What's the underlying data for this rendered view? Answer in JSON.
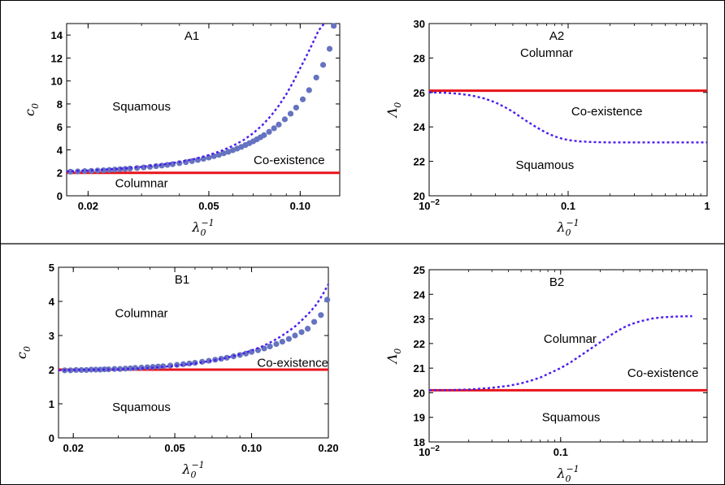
{
  "chart_data": [
    {
      "id": "A1",
      "type": "scatter",
      "panel_label": "A1",
      "xlabel_base": "λ",
      "xlabel_sub": "0",
      "xlabel_sup": "−1",
      "ylabel_base": "c",
      "ylabel_sub": "0",
      "xscale": "log",
      "xlim": [
        0.017,
        0.135
      ],
      "ylim": [
        0,
        15
      ],
      "xticks": [
        {
          "v": 0.02,
          "label": "0.02"
        },
        {
          "v": 0.05,
          "label": "0.05"
        },
        {
          "v": 0.1,
          "label": "0.10"
        }
      ],
      "yticks": [
        {
          "v": 0,
          "label": "0"
        },
        {
          "v": 2,
          "label": "2"
        },
        {
          "v": 4,
          "label": "4"
        },
        {
          "v": 6,
          "label": "6"
        },
        {
          "v": 8,
          "label": "8"
        },
        {
          "v": 10,
          "label": "10"
        },
        {
          "v": 12,
          "label": "12"
        },
        {
          "v": 14,
          "label": "14"
        }
      ],
      "regions": [
        {
          "text": "Squamous",
          "x": 0.03,
          "y": 7.8
        },
        {
          "text": "Co-existence",
          "x": 0.092,
          "y": 3.1
        },
        {
          "text": "Columnar",
          "x": 0.03,
          "y": 1.1
        }
      ],
      "red_line": {
        "y": 2.0
      },
      "dotted_curve": {
        "x": [
          0.017,
          0.02,
          0.025,
          0.03,
          0.035,
          0.04,
          0.045,
          0.05,
          0.055,
          0.06,
          0.065,
          0.07,
          0.075,
          0.08,
          0.085,
          0.09,
          0.095,
          0.1,
          0.105,
          0.11,
          0.115,
          0.12
        ],
        "y": [
          2.12,
          2.2,
          2.35,
          2.52,
          2.72,
          2.95,
          3.22,
          3.55,
          3.92,
          4.35,
          4.85,
          5.45,
          6.15,
          6.95,
          7.85,
          8.85,
          9.95,
          11.1,
          12.2,
          13.3,
          14.4,
          15.0
        ]
      },
      "points": {
        "x": [
          0.0175,
          0.0185,
          0.0195,
          0.0205,
          0.0215,
          0.0225,
          0.0235,
          0.0245,
          0.0255,
          0.0265,
          0.0275,
          0.029,
          0.0305,
          0.032,
          0.0335,
          0.035,
          0.0365,
          0.038,
          0.04,
          0.042,
          0.044,
          0.046,
          0.048,
          0.05,
          0.052,
          0.054,
          0.056,
          0.058,
          0.06,
          0.062,
          0.064,
          0.066,
          0.068,
          0.07,
          0.072,
          0.074,
          0.076,
          0.079,
          0.082,
          0.085,
          0.089,
          0.093,
          0.097,
          0.102,
          0.107,
          0.113,
          0.119,
          0.125
        ],
        "y": [
          2.1,
          2.12,
          2.15,
          2.17,
          2.2,
          2.22,
          2.25,
          2.28,
          2.31,
          2.34,
          2.37,
          2.42,
          2.47,
          2.52,
          2.58,
          2.63,
          2.69,
          2.75,
          2.84,
          2.93,
          3.02,
          3.12,
          3.22,
          3.33,
          3.45,
          3.57,
          3.7,
          3.83,
          3.97,
          4.11,
          4.26,
          4.42,
          4.58,
          4.74,
          4.92,
          5.1,
          5.28,
          5.57,
          5.88,
          6.2,
          6.66,
          7.15,
          7.68,
          8.4,
          9.2,
          10.3,
          11.4,
          12.8
        ]
      },
      "extra_point": {
        "x": 0.129,
        "y": 14.8
      }
    },
    {
      "id": "A2",
      "type": "line",
      "panel_label": "A2",
      "xlabel_base": "λ",
      "xlabel_sub": "0",
      "xlabel_sup": "−1",
      "ylabel_base": "Λ",
      "ylabel_sub": "0",
      "xscale": "log",
      "xlim": [
        0.01,
        1
      ],
      "ylim": [
        20,
        30
      ],
      "xticks": [
        {
          "v": 0.01,
          "label": "10",
          "sup": "−2"
        },
        {
          "v": 0.1,
          "label": "0.1"
        },
        {
          "v": 1,
          "label": "1"
        }
      ],
      "yticks": [
        {
          "v": 20,
          "label": "20"
        },
        {
          "v": 22,
          "label": "22"
        },
        {
          "v": 24,
          "label": "24"
        },
        {
          "v": 26,
          "label": "26"
        },
        {
          "v": 28,
          "label": "28"
        },
        {
          "v": 30,
          "label": "30"
        }
      ],
      "regions": [
        {
          "text": "Columnar",
          "x": 0.07,
          "y": 28.3
        },
        {
          "text": "Co-existence",
          "x": 0.19,
          "y": 24.9
        },
        {
          "text": "Squamous",
          "x": 0.068,
          "y": 21.8
        }
      ],
      "red_line": {
        "y": 26.1
      },
      "dotted_curve": {
        "x": [
          0.01,
          0.013,
          0.016,
          0.02,
          0.025,
          0.03,
          0.035,
          0.04,
          0.045,
          0.05,
          0.06,
          0.07,
          0.08,
          0.09,
          0.1,
          0.12,
          0.15,
          0.2,
          0.3,
          0.5,
          1.0
        ],
        "y": [
          26.0,
          25.98,
          25.93,
          25.83,
          25.65,
          25.42,
          25.15,
          24.88,
          24.6,
          24.35,
          23.95,
          23.65,
          23.45,
          23.32,
          23.24,
          23.16,
          23.12,
          23.1,
          23.1,
          23.1,
          23.1
        ]
      }
    },
    {
      "id": "B1",
      "type": "scatter",
      "panel_label": "B1",
      "xlabel_base": "λ",
      "xlabel_sub": "0",
      "xlabel_sup": "−1",
      "ylabel_base": "c",
      "ylabel_sub": "0",
      "xscale": "log",
      "xlim": [
        0.0175,
        0.2
      ],
      "ylim": [
        0,
        5
      ],
      "xticks": [
        {
          "v": 0.02,
          "label": "0.02"
        },
        {
          "v": 0.05,
          "label": "0.05"
        },
        {
          "v": 0.1,
          "label": "0.10"
        },
        {
          "v": 0.2,
          "label": "0.20"
        }
      ],
      "yticks": [
        {
          "v": 0,
          "label": "0"
        },
        {
          "v": 1,
          "label": "1"
        },
        {
          "v": 2,
          "label": "2"
        },
        {
          "v": 3,
          "label": "3"
        },
        {
          "v": 4,
          "label": "4"
        },
        {
          "v": 5,
          "label": "5"
        }
      ],
      "regions": [
        {
          "text": "Columnar",
          "x": 0.037,
          "y": 3.65
        },
        {
          "text": "Co-existence",
          "x": 0.145,
          "y": 2.2
        },
        {
          "text": "Squamous",
          "x": 0.037,
          "y": 0.9
        }
      ],
      "red_line": {
        "y": 2.0
      },
      "dotted_curve": {
        "x": [
          0.0175,
          0.02,
          0.025,
          0.03,
          0.035,
          0.04,
          0.045,
          0.05,
          0.06,
          0.07,
          0.08,
          0.09,
          0.1,
          0.11,
          0.12,
          0.13,
          0.14,
          0.15,
          0.16,
          0.17,
          0.18,
          0.19,
          0.2
        ],
        "y": [
          1.98,
          1.99,
          2.0,
          2.01,
          2.03,
          2.05,
          2.08,
          2.11,
          2.18,
          2.26,
          2.35,
          2.45,
          2.56,
          2.68,
          2.82,
          2.97,
          3.13,
          3.3,
          3.5,
          3.7,
          3.92,
          4.2,
          4.5
        ]
      },
      "points": {
        "x": [
          0.0185,
          0.0195,
          0.0205,
          0.0215,
          0.0225,
          0.0235,
          0.0245,
          0.0255,
          0.0265,
          0.0275,
          0.029,
          0.0305,
          0.032,
          0.0335,
          0.035,
          0.037,
          0.039,
          0.041,
          0.043,
          0.045,
          0.048,
          0.051,
          0.054,
          0.057,
          0.06,
          0.064,
          0.068,
          0.072,
          0.076,
          0.08,
          0.085,
          0.09,
          0.095,
          0.1,
          0.106,
          0.112,
          0.118,
          0.125,
          0.132,
          0.14,
          0.148,
          0.157,
          0.166,
          0.176,
          0.187,
          0.198
        ],
        "y": [
          1.98,
          1.98,
          1.99,
          1.99,
          1.99,
          2.0,
          2.0,
          2.0,
          2.01,
          2.01,
          2.02,
          2.02,
          2.03,
          2.04,
          2.05,
          2.06,
          2.07,
          2.08,
          2.09,
          2.1,
          2.12,
          2.14,
          2.16,
          2.18,
          2.2,
          2.23,
          2.26,
          2.29,
          2.32,
          2.35,
          2.39,
          2.43,
          2.47,
          2.52,
          2.57,
          2.62,
          2.68,
          2.75,
          2.82,
          2.9,
          3.0,
          3.1,
          3.2,
          3.4,
          3.6,
          4.05
        ]
      }
    },
    {
      "id": "B2",
      "type": "line",
      "panel_label": "B2",
      "xlabel_base": "λ",
      "xlabel_sub": "0",
      "xlabel_sup": "−1",
      "ylabel_base": "Λ",
      "ylabel_sub": "0",
      "xscale": "log",
      "xlim": [
        0.01,
        1.3
      ],
      "ylim": [
        18,
        25
      ],
      "xticks": [
        {
          "v": 0.01,
          "label": "10",
          "sup": "−2"
        },
        {
          "v": 0.1,
          "label": "0.1"
        }
      ],
      "yticks": [
        {
          "v": 18,
          "label": "18"
        },
        {
          "v": 19,
          "label": "19"
        },
        {
          "v": 20,
          "label": "20"
        },
        {
          "v": 21,
          "label": "21"
        },
        {
          "v": 22,
          "label": "22"
        },
        {
          "v": 23,
          "label": "23"
        },
        {
          "v": 24,
          "label": "24"
        },
        {
          "v": 25,
          "label": "25"
        }
      ],
      "regions": [
        {
          "text": "Columnar",
          "x": 0.118,
          "y": 22.2
        },
        {
          "text": "Co-existence",
          "x": 0.6,
          "y": 20.8
        },
        {
          "text": "Squamous",
          "x": 0.12,
          "y": 19.0
        }
      ],
      "red_line": {
        "y": 20.1
      },
      "dotted_curve": {
        "x": [
          0.01,
          0.015,
          0.02,
          0.03,
          0.04,
          0.05,
          0.06,
          0.07,
          0.08,
          0.1,
          0.12,
          0.15,
          0.2,
          0.25,
          0.3,
          0.35,
          0.4,
          0.5,
          0.6,
          0.8,
          1.0
        ],
        "y": [
          20.1,
          20.11,
          20.13,
          20.2,
          20.28,
          20.38,
          20.5,
          20.62,
          20.76,
          21.0,
          21.25,
          21.6,
          22.05,
          22.4,
          22.65,
          22.8,
          22.9,
          23.02,
          23.07,
          23.1,
          23.11
        ]
      }
    }
  ],
  "colors": {
    "red_line": "#e8141b",
    "dotted": "#4b1cf0",
    "points": "#6673c0",
    "frame": "#000000"
  }
}
